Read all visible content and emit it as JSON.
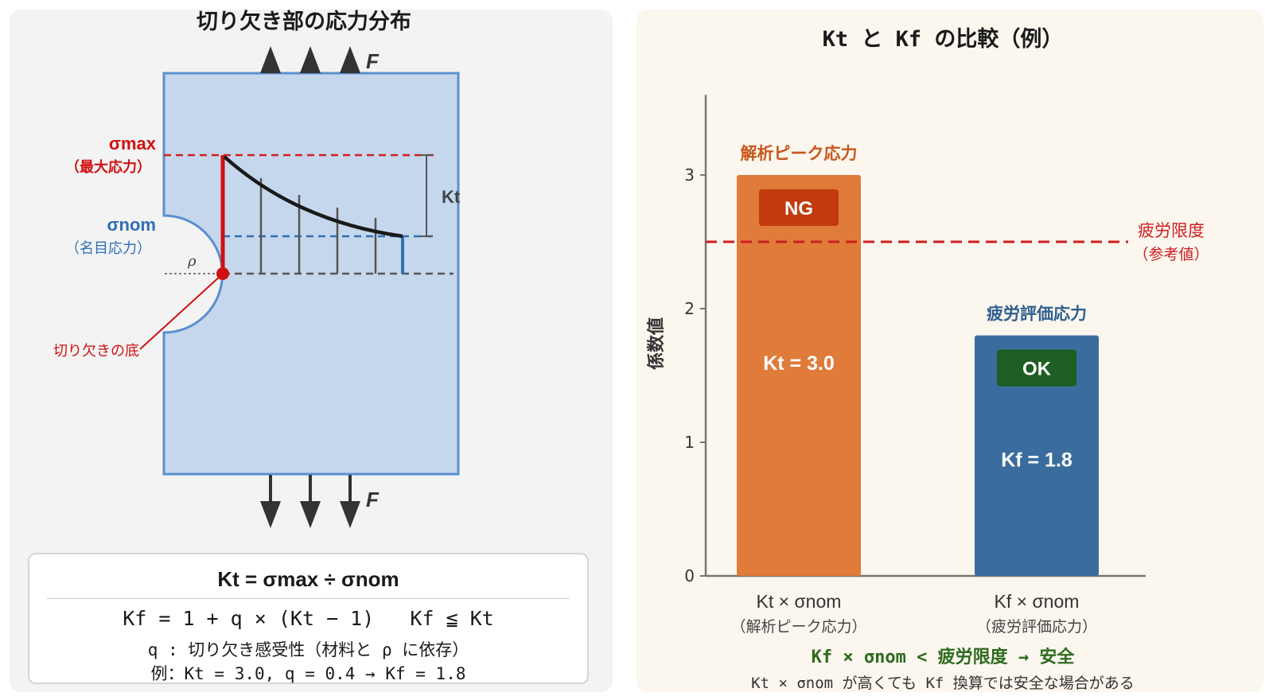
{
  "left": {
    "title": "切り欠き部の応力分布",
    "force_label": "F",
    "sigma_max_label": "σmax",
    "sigma_max_sub": "（最大応力）",
    "sigma_nom_label": "σnom",
    "sigma_nom_sub": "（名目応力）",
    "rho_label": "ρ",
    "kt_label": "Kt",
    "notch_root_label": "切り欠きの底",
    "formula_title": "Kt = σmax ÷ σnom",
    "formula_line1": "Kf = 1 + q × (Kt − 1)   Kf ≦ Kt",
    "formula_line2": "q : 切り欠き感受性（材料と ρ に依存）",
    "formula_line3": "例：Kt = 3.0, q = 0.4 → Kf = 1.8"
  },
  "chart_data": {
    "type": "bar",
    "title": "Kt と Kf の比較（例）",
    "ylabel": "係数値",
    "ylim": [
      0,
      3.6
    ],
    "yticks": [
      "0",
      "1",
      "2",
      "3"
    ],
    "categories": [
      "Kt × σnom",
      "Kf × σnom"
    ],
    "category_sublabels": [
      "（解析ピーク応力）",
      "（疲労評価応力）"
    ],
    "values": [
      3.0,
      1.8
    ],
    "bar_top_labels": [
      "解析ピーク応力",
      "疲労評価応力"
    ],
    "bar_value_labels": [
      "Kt = 3.0",
      "Kf = 1.8"
    ],
    "badges": [
      "NG",
      "OK"
    ],
    "colors": [
      "#e07b3a",
      "#3a6d9e"
    ],
    "badge_colors": [
      "#c13b0d",
      "#1e5e22"
    ],
    "reference_line": {
      "value": 2.5,
      "label": "疲労限度",
      "sublabel": "（参考値）",
      "color": "#cc1f1f"
    },
    "footer_main": "Kf × σnom < 疲労限度 → 安全",
    "footer_note": "Kt × σnom が高くても Kf 換算では安全な場合がある"
  }
}
